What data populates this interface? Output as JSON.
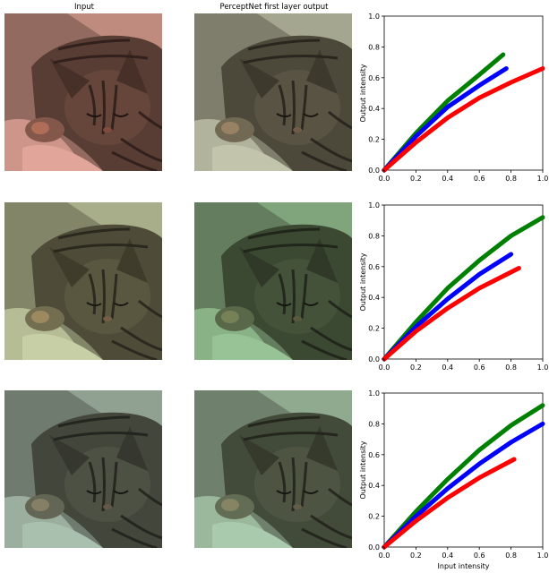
{
  "columns": {
    "input_title": "Input",
    "output_title": "PerceptNet first layer output"
  },
  "rows": [
    {
      "input_tint": "#f3b5aa",
      "output_tint": "#d2d8bf"
    },
    {
      "input_tint": "#d7e3b8",
      "output_tint": "#a3d6a6"
    },
    {
      "input_tint": "#b8d2c2",
      "output_tint": "#b7ddc0"
    }
  ],
  "chart_data": [
    {
      "type": "line",
      "xlabel": "",
      "ylabel": "Output intensity",
      "xlim": [
        0,
        1.0
      ],
      "ylim": [
        0,
        1.0
      ],
      "xticks": [
        "0.0",
        "0.2",
        "0.4",
        "0.6",
        "0.8",
        "1.0"
      ],
      "yticks": [
        "0.0",
        "0.2",
        "0.4",
        "0.6",
        "0.8",
        "1.0"
      ],
      "series": [
        {
          "color": "#008000",
          "x": [
            0,
            0.2,
            0.4,
            0.6,
            0.75
          ],
          "y": [
            0,
            0.24,
            0.45,
            0.62,
            0.75
          ]
        },
        {
          "color": "#0000ff",
          "x": [
            0,
            0.2,
            0.4,
            0.6,
            0.77
          ],
          "y": [
            0,
            0.22,
            0.41,
            0.55,
            0.66
          ]
        },
        {
          "color": "#ff0000",
          "x": [
            0,
            0.2,
            0.4,
            0.6,
            0.8,
            1.0
          ],
          "y": [
            0,
            0.18,
            0.34,
            0.47,
            0.57,
            0.66
          ]
        }
      ]
    },
    {
      "type": "line",
      "xlabel": "",
      "ylabel": "Output intensity",
      "xlim": [
        0,
        1.0
      ],
      "ylim": [
        0,
        1.0
      ],
      "xticks": [
        "0.0",
        "0.2",
        "0.4",
        "0.6",
        "0.8",
        "1.0"
      ],
      "yticks": [
        "0.0",
        "0.2",
        "0.4",
        "0.6",
        "0.8",
        "1.0"
      ],
      "series": [
        {
          "color": "#008000",
          "x": [
            0,
            0.2,
            0.4,
            0.6,
            0.8,
            1.0
          ],
          "y": [
            0,
            0.24,
            0.46,
            0.64,
            0.8,
            0.92
          ]
        },
        {
          "color": "#0000ff",
          "x": [
            0,
            0.2,
            0.4,
            0.6,
            0.8
          ],
          "y": [
            0,
            0.21,
            0.39,
            0.55,
            0.68
          ]
        },
        {
          "color": "#ff0000",
          "x": [
            0,
            0.2,
            0.4,
            0.6,
            0.85
          ],
          "y": [
            0,
            0.18,
            0.33,
            0.46,
            0.59
          ]
        }
      ]
    },
    {
      "type": "line",
      "xlabel": "Input intensity",
      "ylabel": "Output intensity",
      "xlim": [
        0,
        1.0
      ],
      "ylim": [
        0,
        1.0
      ],
      "xticks": [
        "0.0",
        "0.2",
        "0.4",
        "0.6",
        "0.8",
        "1.0"
      ],
      "yticks": [
        "0.0",
        "0.2",
        "0.4",
        "0.6",
        "0.8",
        "1.0"
      ],
      "series": [
        {
          "color": "#008000",
          "x": [
            0,
            0.2,
            0.4,
            0.6,
            0.8,
            1.0
          ],
          "y": [
            0,
            0.23,
            0.44,
            0.63,
            0.79,
            0.92
          ]
        },
        {
          "color": "#0000ff",
          "x": [
            0,
            0.2,
            0.4,
            0.6,
            0.8,
            1.0
          ],
          "y": [
            0,
            0.2,
            0.38,
            0.54,
            0.68,
            0.8
          ]
        },
        {
          "color": "#ff0000",
          "x": [
            0,
            0.2,
            0.4,
            0.6,
            0.82
          ],
          "y": [
            0,
            0.17,
            0.32,
            0.45,
            0.57
          ]
        }
      ]
    }
  ]
}
